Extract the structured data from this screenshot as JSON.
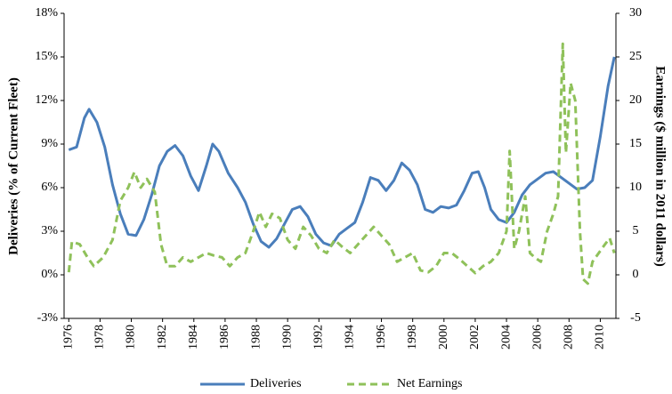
{
  "chart_data": {
    "type": "line",
    "y_label": "Deliveries (% of Current Fleet)",
    "y2_label": "Earnings ($ million in 2011 dollars)",
    "xlim": [
      1975.7,
      2011
    ],
    "xticks": [
      1976,
      1978,
      1980,
      1982,
      1984,
      1986,
      1988,
      1990,
      1992,
      1994,
      1996,
      1998,
      2000,
      2002,
      2004,
      2006,
      2008,
      2010
    ],
    "ylim": [
      -3,
      18
    ],
    "yticks": [
      {
        "value": -3,
        "label": "-3%"
      },
      {
        "value": 0,
        "label": "0%"
      },
      {
        "value": 3,
        "label": "3%"
      },
      {
        "value": 6,
        "label": "6%"
      },
      {
        "value": 9,
        "label": "9%"
      },
      {
        "value": 12,
        "label": "12%"
      },
      {
        "value": 15,
        "label": "15%"
      },
      {
        "value": 18,
        "label": "18%"
      }
    ],
    "y2lim": [
      -5,
      30
    ],
    "y2ticks": [
      -5,
      0,
      5,
      10,
      15,
      20,
      25,
      30
    ],
    "grid": false,
    "legend": "bottom",
    "series": [
      {
        "name": "Deliveries",
        "color": "#4a7ebb",
        "dashed": false,
        "x": [
          1976,
          1976.5,
          1977,
          1977.3,
          1977.8,
          1978.3,
          1978.8,
          1979.3,
          1979.8,
          1980.3,
          1980.8,
          1981.3,
          1981.8,
          1982.3,
          1982.8,
          1983.3,
          1983.8,
          1984.3,
          1984.8,
          1985.2,
          1985.6,
          1986.2,
          1986.8,
          1987.3,
          1987.8,
          1988.3,
          1988.8,
          1989.3,
          1989.8,
          1990.3,
          1990.8,
          1991.3,
          1991.8,
          1992.3,
          1992.8,
          1993.3,
          1993.8,
          1994.3,
          1994.8,
          1995.3,
          1995.8,
          1996.3,
          1996.8,
          1997.3,
          1997.8,
          1998.3,
          1998.8,
          1999.3,
          1999.8,
          2000.3,
          2000.8,
          2001.3,
          2001.8,
          2002.2,
          2002.6,
          2003.0,
          2003.5,
          2004.0,
          2004.5,
          2005.0,
          2005.5,
          2006.0,
          2006.5,
          2007.0,
          2007.5,
          2008.0,
          2008.5,
          2009.0,
          2009.5,
          2010.0,
          2010.5,
          2010.9
        ],
        "values": [
          8.6,
          8.8,
          10.8,
          11.4,
          10.5,
          8.8,
          6.2,
          4.2,
          2.8,
          2.7,
          3.8,
          5.5,
          7.5,
          8.5,
          8.9,
          8.2,
          6.8,
          5.8,
          7.5,
          9.0,
          8.5,
          7.0,
          6.0,
          5.0,
          3.5,
          2.3,
          1.9,
          2.5,
          3.5,
          4.5,
          4.7,
          4.0,
          2.8,
          2.2,
          2.0,
          2.8,
          3.2,
          3.6,
          5.0,
          6.7,
          6.5,
          5.8,
          6.5,
          7.7,
          7.2,
          6.2,
          4.5,
          4.3,
          4.7,
          4.6,
          4.8,
          5.8,
          7.0,
          7.1,
          6.0,
          4.5,
          3.8,
          3.6,
          4.3,
          5.5,
          6.2,
          6.6,
          7.0,
          7.1,
          6.7,
          6.3,
          5.9,
          6.0,
          6.5,
          9.5,
          13.0,
          15.0
        ]
      },
      {
        "name": "Net Earnings",
        "color": "#8fc15a",
        "dashed": true,
        "axis": "y2",
        "x": [
          1976,
          1976.2,
          1976.7,
          1977.2,
          1977.6,
          1978.2,
          1978.8,
          1979.3,
          1979.8,
          1980.2,
          1980.6,
          1981.0,
          1981.5,
          1981.9,
          1982.3,
          1982.8,
          1983.3,
          1983.8,
          1984.3,
          1984.8,
          1985.3,
          1985.8,
          1986.3,
          1986.8,
          1987.3,
          1987.8,
          1988.2,
          1988.6,
          1989.0,
          1989.5,
          1990.0,
          1990.5,
          1991.0,
          1991.5,
          1992.0,
          1992.5,
          1993.0,
          1993.5,
          1994.0,
          1994.5,
          1995.0,
          1995.5,
          1996.0,
          1996.5,
          1997.0,
          1997.5,
          1998.0,
          1998.5,
          1999.0,
          1999.5,
          2000.0,
          2000.5,
          2001.0,
          2001.5,
          2002.0,
          2002.5,
          2003.0,
          2003.5,
          2004.0,
          2004.2,
          2004.5,
          2004.8,
          2005.2,
          2005.5,
          2005.8,
          2006.2,
          2006.6,
          2007.0,
          2007.3,
          2007.6,
          2007.8,
          2008.1,
          2008.4,
          2008.7,
          2008.9,
          2009.2,
          2009.5,
          2009.9,
          2010.3,
          2010.6,
          2010.9
        ],
        "values": [
          0.3,
          3.8,
          3.5,
          2.0,
          1.0,
          2.0,
          4.0,
          8.5,
          10.0,
          11.8,
          10.0,
          11.0,
          9.5,
          3.5,
          1.0,
          1.0,
          2.0,
          1.5,
          2.0,
          2.5,
          2.2,
          2.0,
          1.0,
          2.0,
          2.5,
          5.0,
          7.2,
          5.5,
          7.0,
          6.5,
          4.0,
          3.0,
          5.5,
          4.5,
          3.0,
          2.5,
          4.0,
          3.2,
          2.5,
          3.5,
          4.5,
          5.5,
          4.5,
          3.5,
          1.5,
          2.0,
          2.5,
          0.5,
          0.3,
          1.0,
          2.5,
          2.5,
          1.8,
          1.0,
          0.2,
          1.0,
          1.5,
          2.5,
          5.0,
          14.2,
          3.0,
          5.0,
          9.0,
          2.5,
          2.0,
          1.5,
          5.0,
          7.0,
          9.0,
          26.5,
          14.0,
          22.0,
          20.0,
          5.0,
          -0.5,
          -1.0,
          1.5,
          2.5,
          3.5,
          4.2,
          2.5
        ]
      }
    ]
  }
}
